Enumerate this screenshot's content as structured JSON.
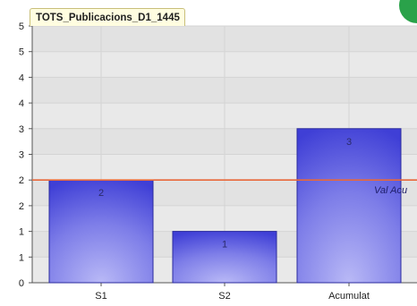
{
  "colors": {
    "plot_bg": "#e9e9e9",
    "grid": "#d4d4d4",
    "bar_light": "#b9b9f6",
    "bar_dark": "#3f3fd6",
    "target_line": "#e8683a",
    "title_bg": "#fffde0",
    "badge": "#2aa24a"
  },
  "chart_data": {
    "type": "bar",
    "title": "TOTS_Publicacions_D1_1445",
    "categories": [
      "S1",
      "S2",
      "Acumulat"
    ],
    "values": [
      2,
      1,
      3
    ],
    "data_labels": [
      "2",
      "1",
      "3"
    ],
    "ylim": [
      0,
      5
    ],
    "y_tick_labels": [
      "0",
      "1",
      "1",
      "2",
      "2",
      "3",
      "3",
      "4",
      "4",
      "5",
      "5"
    ],
    "reference_line": {
      "value": 2,
      "label": "Val Acu"
    },
    "grid": true,
    "legend": "none"
  }
}
